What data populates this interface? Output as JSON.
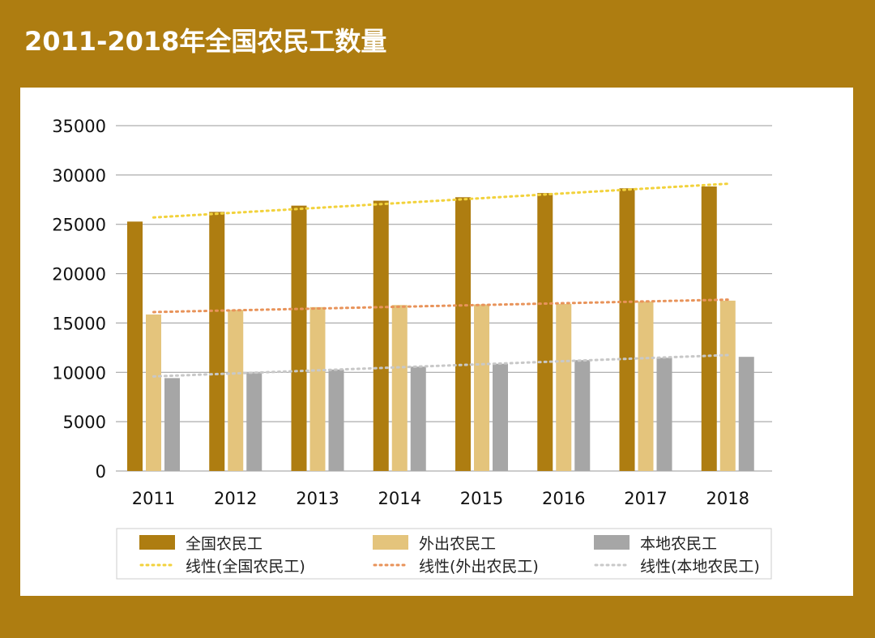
{
  "title": "2011-2018年全国农民工数量",
  "chart_data": {
    "type": "bar",
    "title": "2011-2018年全国农民工数量",
    "categories": [
      "2011",
      "2012",
      "2013",
      "2014",
      "2015",
      "2016",
      "2017",
      "2018"
    ],
    "series": [
      {
        "name": "全国农民工",
        "color": "#ae7d11",
        "values": [
          25278,
          26261,
          26894,
          27395,
          27747,
          28171,
          28652,
          28836
        ]
      },
      {
        "name": "外出农民工",
        "color": "#e4c47c",
        "values": [
          15863,
          16336,
          16610,
          16821,
          16884,
          16934,
          17185,
          17266
        ]
      },
      {
        "name": "本地农民工",
        "color": "#a6a6a6",
        "values": [
          9415,
          9925,
          10284,
          10574,
          10863,
          11237,
          11467,
          11570
        ]
      }
    ],
    "trendlines": [
      {
        "name": "线性(全国农民工)",
        "type": "linear",
        "of": "全国农民工",
        "color": "#f2d23c"
      },
      {
        "name": "线性(外出农民工)",
        "type": "linear",
        "of": "外出农民工",
        "color": "#e8935a"
      },
      {
        "name": "线性(本地农民工)",
        "type": "linear",
        "of": "本地农民工",
        "color": "#c8c8c8"
      }
    ],
    "yticks": [
      "0",
      "5000",
      "10000",
      "15000",
      "20000",
      "25000",
      "30000",
      "35000"
    ],
    "ylim": [
      0,
      35000
    ],
    "grid": true,
    "legend": "bottom"
  }
}
